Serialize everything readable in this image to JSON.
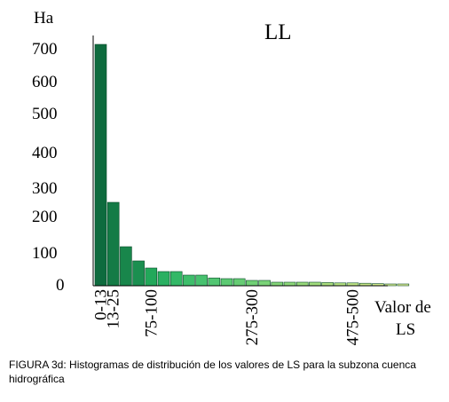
{
  "chart_data": {
    "type": "bar",
    "title": "LL",
    "ylabel": "Ha",
    "xlabel": "Valor de LS",
    "xlabel_lines": [
      "Valor de",
      "LS"
    ],
    "ylim": [
      0,
      700
    ],
    "y_tick_labels": [
      "700",
      "600",
      "500",
      "400",
      "300",
      "200",
      "100",
      "0"
    ],
    "y_tick_values": [
      700,
      600,
      500,
      400,
      300,
      200,
      100,
      0
    ],
    "x_tick_labels": [
      "0-13",
      "13-25",
      "75-100",
      "275-300",
      "475-500"
    ],
    "x_tick_bar_index": [
      0,
      1,
      4,
      12,
      20
    ],
    "values": [
      680,
      235,
      110,
      70,
      50,
      40,
      40,
      30,
      30,
      22,
      20,
      20,
      15,
      15,
      10,
      10,
      10,
      10,
      9,
      8,
      8,
      7,
      6,
      5,
      5
    ],
    "colors": [
      "#0e6b3e",
      "#147b46",
      "#18864b",
      "#1b8f50",
      "#22a85a",
      "#2ab062",
      "#33b867",
      "#3ebe6b",
      "#47c26f",
      "#52c672",
      "#5cca73",
      "#66cc74",
      "#70d075",
      "#7ad377",
      "#84d578",
      "#8ed87a",
      "#98da7b",
      "#a2dd7d",
      "#acdf7f",
      "#b6e282",
      "#bfe485",
      "#c8e688",
      "#d0e98c",
      "#d8eb90",
      "#e0ee95"
    ]
  },
  "caption_text": "FIGURA 3d: Histogramas de distribución de los valores de LS para la subzona cuenca hidrográfica"
}
